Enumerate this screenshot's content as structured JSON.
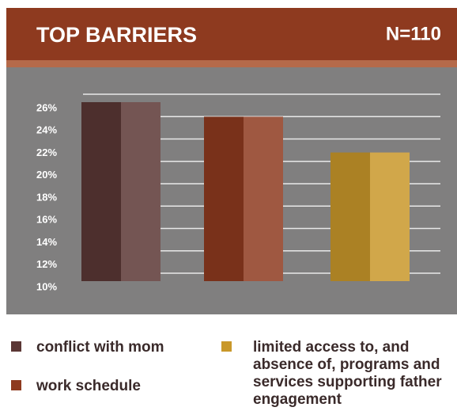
{
  "chart_data": {
    "type": "bar",
    "title": "TOP BARRIERS",
    "subtitle": "N=110",
    "series": [
      {
        "name": "conflict with mom",
        "color": "#5b3735",
        "values": [
          26
        ]
      },
      {
        "name": "work schedule",
        "color": "#8e3a1f",
        "values": [
          24.7
        ]
      },
      {
        "name": "limited access to, and absence of, programs and services supporting father engagement",
        "color": "#c9982a",
        "values": [
          21.5
        ]
      }
    ],
    "ylim": [
      10,
      26
    ],
    "yticks": [
      {
        "value": 10,
        "label": "10%"
      },
      {
        "value": 12,
        "label": "12%"
      },
      {
        "value": 14,
        "label": "14%"
      },
      {
        "value": 16,
        "label": "16%"
      },
      {
        "value": 18,
        "label": "18%"
      },
      {
        "value": 20,
        "label": "20%"
      },
      {
        "value": 22,
        "label": "22%"
      },
      {
        "value": 24,
        "label": "24%"
      },
      {
        "value": 26,
        "label": "26%"
      }
    ],
    "grid": true
  }
}
